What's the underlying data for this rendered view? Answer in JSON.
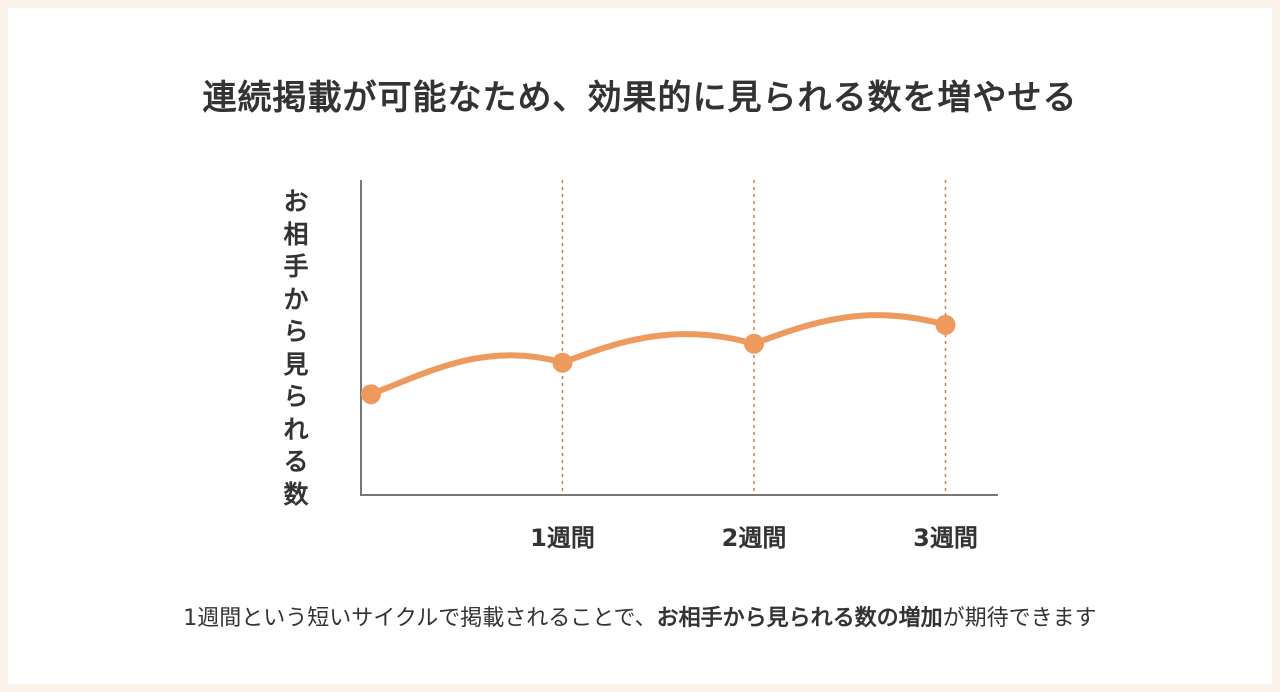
{
  "title": "連続掲載が可能なため、効果的に見られる数を増やせる",
  "caption": {
    "prefix": "1週間という短いサイクルで掲載されることで、",
    "emphasis": "お相手から見られる数の増加",
    "suffix": "が期待できます"
  },
  "colors": {
    "line": "#ee9a5c",
    "axis": "#777777",
    "gridline": "#c87a55",
    "text": "#333333",
    "background": "#fbf3ea"
  },
  "chart_data": {
    "type": "line",
    "title": "",
    "xlabel": "",
    "ylabel": "お相手から見られる数",
    "categories": [
      "",
      "1週間",
      "2週間",
      "3週間"
    ],
    "x": [
      0,
      1,
      2,
      3
    ],
    "values": [
      32,
      42,
      48,
      54
    ],
    "ylim": [
      0,
      100
    ],
    "grid": "vertical dotted lines at 1週間, 2週間, 3週間",
    "legend": "none",
    "y_tick_labels": "none"
  }
}
